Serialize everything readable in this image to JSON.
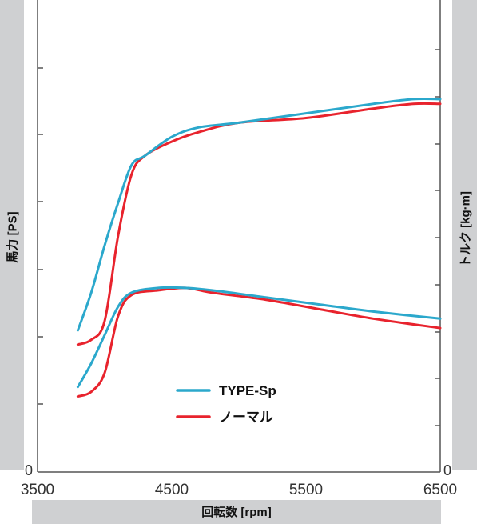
{
  "chart_data": {
    "type": "line",
    "xlabel": "回転数 [rpm]",
    "ylabel_left": "馬力 [PS]",
    "ylabel_right": "トルク [kg·m]",
    "x_ticks": [
      "3500",
      "4500",
      "5500",
      "6500"
    ],
    "xlim": [
      3500,
      6500
    ],
    "left_zero_label": "0",
    "right_zero_label": "0",
    "legend": [
      {
        "name": "TYPE-Sp",
        "color": "#2ba8cc"
      },
      {
        "name": "ノーマル",
        "color": "#e8232d"
      }
    ],
    "power_series": [
      {
        "name": "TYPE-Sp",
        "color": "#2ba8cc",
        "x": [
          3800,
          3900,
          4000,
          4100,
          4200,
          4300,
          4500,
          4700,
          5000,
          5500,
          6000,
          6300,
          6500
        ],
        "y": [
          0.3,
          0.38,
          0.48,
          0.57,
          0.65,
          0.67,
          0.71,
          0.73,
          0.74,
          0.76,
          0.78,
          0.79,
          0.79
        ]
      },
      {
        "name": "ノーマル",
        "color": "#e8232d",
        "x": [
          3800,
          3900,
          4000,
          4100,
          4200,
          4300,
          4500,
          4700,
          5000,
          5500,
          6000,
          6300,
          6500
        ],
        "y": [
          0.27,
          0.28,
          0.32,
          0.5,
          0.63,
          0.67,
          0.7,
          0.72,
          0.74,
          0.75,
          0.77,
          0.78,
          0.78
        ]
      }
    ],
    "torque_series": [
      {
        "name": "TYPE-Sp",
        "color": "#2ba8cc",
        "x": [
          3800,
          3900,
          4000,
          4100,
          4200,
          4400,
          4600,
          4800,
          5200,
          5600,
          6000,
          6500
        ],
        "y": [
          0.18,
          0.23,
          0.29,
          0.35,
          0.38,
          0.39,
          0.39,
          0.385,
          0.37,
          0.355,
          0.34,
          0.325
        ]
      },
      {
        "name": "ノーマル",
        "color": "#e8232d",
        "x": [
          3800,
          3900,
          4000,
          4100,
          4200,
          4400,
          4600,
          4800,
          5200,
          5600,
          6000,
          6500
        ],
        "y": [
          0.16,
          0.17,
          0.21,
          0.33,
          0.375,
          0.385,
          0.39,
          0.38,
          0.365,
          0.345,
          0.325,
          0.305
        ]
      }
    ]
  }
}
